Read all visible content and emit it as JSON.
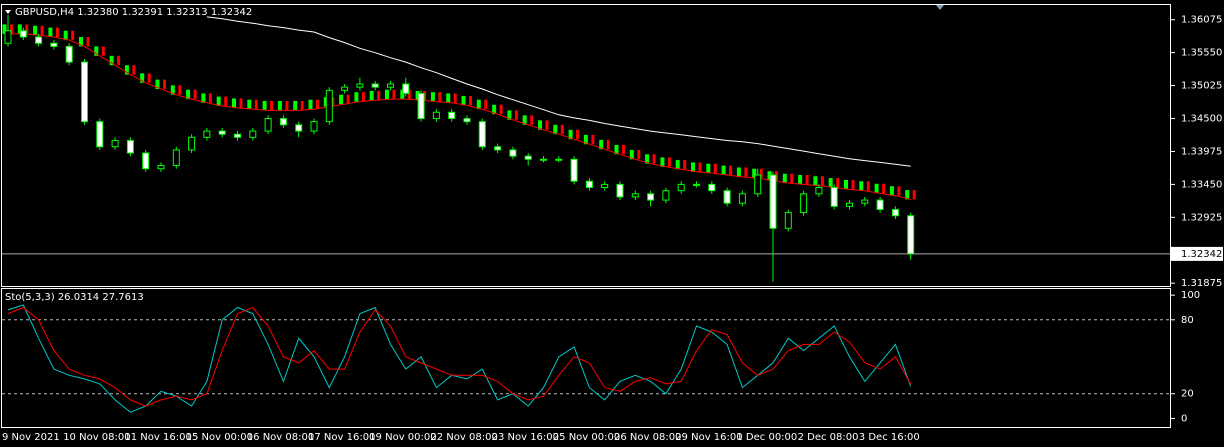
{
  "chart_data": [
    {
      "type": "candlestick",
      "title": "GBPUSD,H4  1.32380 1.32391 1.32313 1.32342",
      "categories": [
        "9 Nov 2021",
        null,
        null,
        null,
        "10 Nov 08:00",
        null,
        null,
        null,
        "11 Nov 16:00",
        null,
        null,
        null,
        "15 Nov 00:00",
        null,
        null,
        null,
        "16 Nov 08:00",
        null,
        null,
        null,
        "17 Nov 16:00",
        null,
        null,
        null,
        "19 Nov 00:00",
        null,
        null,
        null,
        "22 Nov 08:00",
        null,
        null,
        null,
        "23 Nov 16:00",
        null,
        null,
        null,
        "25 Nov 00:00",
        null,
        null,
        null,
        "26 Nov 08:00",
        null,
        null,
        null,
        "29 Nov 16:00",
        null,
        null,
        null,
        "1 Dec 00:00",
        null,
        null,
        null,
        "2 Dec 08:00",
        null,
        null,
        null,
        "3 Dec 16:00",
        null,
        null,
        null
      ],
      "open": [
        1.357,
        1.359,
        1.358,
        1.357,
        1.3565,
        1.354,
        1.3445,
        1.3405,
        1.3415,
        1.3395,
        1.337,
        1.3375,
        1.34,
        1.342,
        1.343,
        1.3425,
        1.342,
        1.343,
        1.345,
        1.344,
        1.343,
        1.3445,
        1.3495,
        1.35,
        1.3505,
        1.35,
        1.3505,
        1.349,
        1.345,
        1.346,
        1.345,
        1.3445,
        1.3405,
        1.34,
        1.339,
        1.3385,
        1.3385,
        1.3385,
        1.335,
        1.334,
        1.3345,
        1.3325,
        1.333,
        1.332,
        1.3335,
        1.3345,
        1.3345,
        1.3335,
        1.3315,
        1.333,
        1.336,
        1.3275,
        1.33,
        1.333,
        1.334,
        1.331,
        1.3315,
        1.332,
        1.3305,
        1.3295
      ],
      "high": [
        1.3615,
        1.3595,
        1.3585,
        1.3575,
        1.357,
        1.3545,
        1.345,
        1.342,
        1.342,
        1.34,
        1.338,
        1.3405,
        1.3425,
        1.3435,
        1.3435,
        1.343,
        1.3435,
        1.3455,
        1.3455,
        1.3445,
        1.345,
        1.35,
        1.3505,
        1.3515,
        1.351,
        1.351,
        1.3515,
        1.3495,
        1.3465,
        1.3465,
        1.3455,
        1.345,
        1.341,
        1.3405,
        1.3395,
        1.339,
        1.339,
        1.339,
        1.3355,
        1.335,
        1.335,
        1.3335,
        1.3335,
        1.334,
        1.335,
        1.335,
        1.335,
        1.334,
        1.3335,
        1.337,
        1.3365,
        1.3305,
        1.3335,
        1.3345,
        1.3345,
        1.332,
        1.3325,
        1.3325,
        1.331,
        1.33
      ],
      "low": [
        1.3565,
        1.3575,
        1.3565,
        1.356,
        1.3535,
        1.344,
        1.34,
        1.34,
        1.339,
        1.3365,
        1.3365,
        1.337,
        1.3395,
        1.3415,
        1.342,
        1.3415,
        1.3415,
        1.3425,
        1.3435,
        1.342,
        1.3425,
        1.344,
        1.349,
        1.3495,
        1.3495,
        1.3495,
        1.3485,
        1.3445,
        1.3445,
        1.3445,
        1.344,
        1.34,
        1.3395,
        1.3385,
        1.3375,
        1.338,
        1.338,
        1.3345,
        1.3335,
        1.3335,
        1.332,
        1.332,
        1.331,
        1.3315,
        1.333,
        1.334,
        1.333,
        1.331,
        1.331,
        1.3325,
        1.319,
        1.327,
        1.3295,
        1.3325,
        1.3305,
        1.3305,
        1.331,
        1.33,
        1.329,
        1.3225
      ],
      "close": [
        1.359,
        1.358,
        1.357,
        1.3565,
        1.354,
        1.3445,
        1.3405,
        1.3415,
        1.3395,
        1.337,
        1.3375,
        1.34,
        1.342,
        1.343,
        1.3425,
        1.342,
        1.343,
        1.345,
        1.344,
        1.343,
        1.3445,
        1.3495,
        1.35,
        1.3505,
        1.35,
        1.3505,
        1.349,
        1.345,
        1.346,
        1.345,
        1.3445,
        1.3405,
        1.34,
        1.339,
        1.3385,
        1.3385,
        1.3385,
        1.335,
        1.334,
        1.3345,
        1.3325,
        1.333,
        1.332,
        1.3335,
        1.3345,
        1.3345,
        1.3335,
        1.3315,
        1.333,
        1.336,
        1.3275,
        1.33,
        1.333,
        1.334,
        1.331,
        1.3315,
        1.332,
        1.3305,
        1.3295,
        1.32342
      ],
      "candle_colors": {
        "up": "#000000",
        "down": "#ffffff",
        "wick": "#00ff00"
      },
      "series": [
        {
          "color": "#00ff00",
          "values": [
            1.36,
            1.36,
            1.3598,
            1.3595,
            1.359,
            1.358,
            1.3565,
            1.355,
            1.3535,
            1.3522,
            1.3512,
            1.3503,
            1.3496,
            1.349,
            1.3485,
            1.3482,
            1.348,
            1.3478,
            1.3478,
            1.3478,
            1.348,
            1.3484,
            1.3488,
            1.3492,
            1.3494,
            1.3496,
            1.3496,
            1.3494,
            1.3492,
            1.349,
            1.3486,
            1.348,
            1.3472,
            1.3463,
            1.3455,
            1.3447,
            1.344,
            1.3432,
            1.3424,
            1.3416,
            1.3408,
            1.34,
            1.3393,
            1.3388,
            1.3384,
            1.338,
            1.3378,
            1.3375,
            1.3372,
            1.337,
            1.3366,
            1.3362,
            1.336,
            1.3358,
            1.3355,
            1.3352,
            1.335,
            1.3346,
            1.3342,
            1.3336
          ]
        },
        {
          "color": "#ff0000",
          "values": [
            1.3585,
            1.3585,
            1.3583,
            1.358,
            1.3575,
            1.3565,
            1.355,
            1.3535,
            1.352,
            1.3507,
            1.3497,
            1.3488,
            1.3481,
            1.3475,
            1.347,
            1.3467,
            1.3465,
            1.3463,
            1.3463,
            1.3463,
            1.3465,
            1.3469,
            1.3473,
            1.3477,
            1.3479,
            1.3481,
            1.3481,
            1.3479,
            1.3477,
            1.3475,
            1.3471,
            1.3465,
            1.3457,
            1.3448,
            1.344,
            1.3432,
            1.3425,
            1.3417,
            1.3409,
            1.3401,
            1.3393,
            1.3385,
            1.3378,
            1.3373,
            1.3369,
            1.3365,
            1.3363,
            1.336,
            1.3357,
            1.3355,
            1.3351,
            1.3347,
            1.3345,
            1.3343,
            1.334,
            1.3337,
            1.3335,
            1.3331,
            1.3327,
            1.3321
          ]
        },
        {
          "color": "#ffffff",
          "values": [
            null,
            null,
            null,
            null,
            null,
            null,
            null,
            null,
            null,
            null,
            null,
            null,
            null,
            1.3612,
            1.3609,
            1.3605,
            1.3602,
            1.3598,
            1.3595,
            1.3591,
            1.3588,
            1.3579,
            1.3571,
            1.3562,
            1.3555,
            1.3547,
            1.354,
            1.3531,
            1.3523,
            1.3514,
            1.3505,
            1.3497,
            1.3488,
            1.348,
            1.3472,
            1.3464,
            1.3456,
            1.3451,
            1.3447,
            1.3442,
            1.3438,
            1.3434,
            1.343,
            1.3427,
            1.3424,
            1.3421,
            1.3418,
            1.3415,
            1.3413,
            1.341,
            1.3406,
            1.3402,
            1.3398,
            1.3394,
            1.339,
            1.3386,
            1.3383,
            1.338,
            1.3377,
            1.3374
          ]
        }
      ],
      "ylim": [
        1.3183,
        1.3631
      ],
      "yticks": [
        1.36075,
        {
          "value": 1.3555,
          "label": "1.35550"
        },
        1.35025,
        {
          "value": 1.345,
          "label": "1.34500"
        },
        1.33975,
        {
          "value": 1.3345,
          "label": "1.33450"
        },
        1.32925,
        1.31875
      ],
      "last_price": 1.32342
    },
    {
      "type": "line",
      "title": "Sto(5,3,3) 26.0314 27.7613",
      "series": [
        {
          "color": "#00c8c8",
          "values": [
            88,
            92,
            65,
            40,
            35,
            32,
            28,
            15,
            5,
            10,
            22,
            18,
            10,
            30,
            80,
            90,
            85,
            60,
            30,
            65,
            50,
            25,
            50,
            85,
            90,
            60,
            40,
            50,
            25,
            35,
            32,
            40,
            15,
            20,
            10,
            25,
            50,
            58,
            25,
            15,
            30,
            35,
            30,
            20,
            40,
            75,
            70,
            60,
            25,
            35,
            45,
            65,
            55,
            65,
            75,
            50,
            30,
            45,
            60,
            26.0314
          ]
        },
        {
          "color": "#ff0000",
          "values": [
            85,
            90,
            80,
            55,
            40,
            35,
            32,
            25,
            15,
            10,
            15,
            18,
            15,
            20,
            55,
            85,
            90,
            75,
            50,
            45,
            55,
            40,
            40,
            70,
            88,
            75,
            50,
            45,
            40,
            35,
            35,
            35,
            30,
            20,
            15,
            18,
            35,
            50,
            45,
            25,
            22,
            30,
            33,
            28,
            30,
            55,
            72,
            68,
            45,
            35,
            40,
            55,
            60,
            60,
            70,
            62,
            45,
            40,
            50,
            27.7613
          ]
        }
      ],
      "ylim": [
        -7,
        105
      ],
      "yticks": [
        0,
        20,
        80,
        100
      ],
      "levels": [
        20,
        80
      ]
    }
  ]
}
